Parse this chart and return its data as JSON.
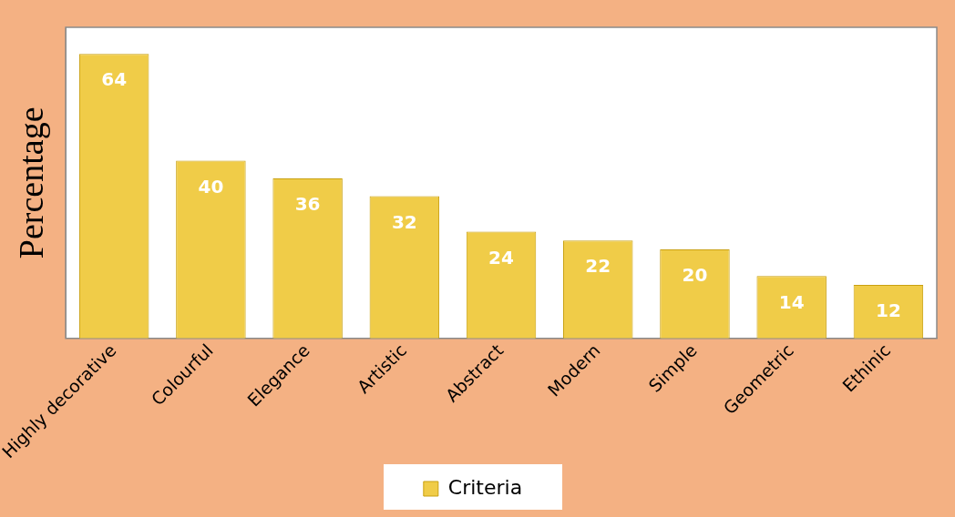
{
  "chart_data": {
    "type": "bar",
    "ylabel": "Percentage",
    "categories": [
      "Highly decorative",
      "Colourful",
      "Elegance",
      "Artistic",
      "Abstract",
      "Modern",
      "Simple",
      "Geometric",
      "Ethinic"
    ],
    "series": [
      {
        "name": "Criteria",
        "color": "#f0cc48",
        "values": [
          64,
          40,
          36,
          32,
          24,
          22,
          20,
          14,
          12
        ]
      }
    ],
    "ylim": [
      0,
      70
    ],
    "tick_labels": "x",
    "grid": false,
    "legend": "bottom",
    "data_labels": true
  }
}
